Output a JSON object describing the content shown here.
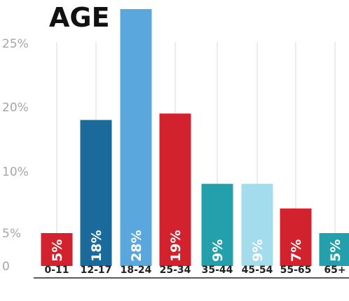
{
  "chart_data": {
    "type": "bar",
    "title": "AGE",
    "categories": [
      "0-11",
      "12-17",
      "18-24",
      "25-34",
      "35-44",
      "45-54",
      "55-65",
      "65+"
    ],
    "values": [
      5,
      18,
      28,
      19,
      9,
      9,
      7,
      5
    ],
    "value_labels": [
      "5%",
      "18%",
      "28%",
      "19%",
      "9%",
      "9%",
      "7%",
      "5%"
    ],
    "colors": [
      "#d2222d",
      "#1b6a9c",
      "#5aa7de",
      "#d2222d",
      "#23a0ac",
      "#a3dcec",
      "#d2222d",
      "#23a0ac"
    ],
    "y_ticks": [
      {
        "label": "0",
        "value": 0
      },
      {
        "label": "5%",
        "value": 5
      },
      {
        "label": "10%",
        "value": 10
      },
      {
        "label": "20%",
        "value": 20
      },
      {
        "label": "25%",
        "value": 25
      }
    ],
    "xlabel": "",
    "ylabel": "",
    "grid": "vertical",
    "legend": "none"
  }
}
